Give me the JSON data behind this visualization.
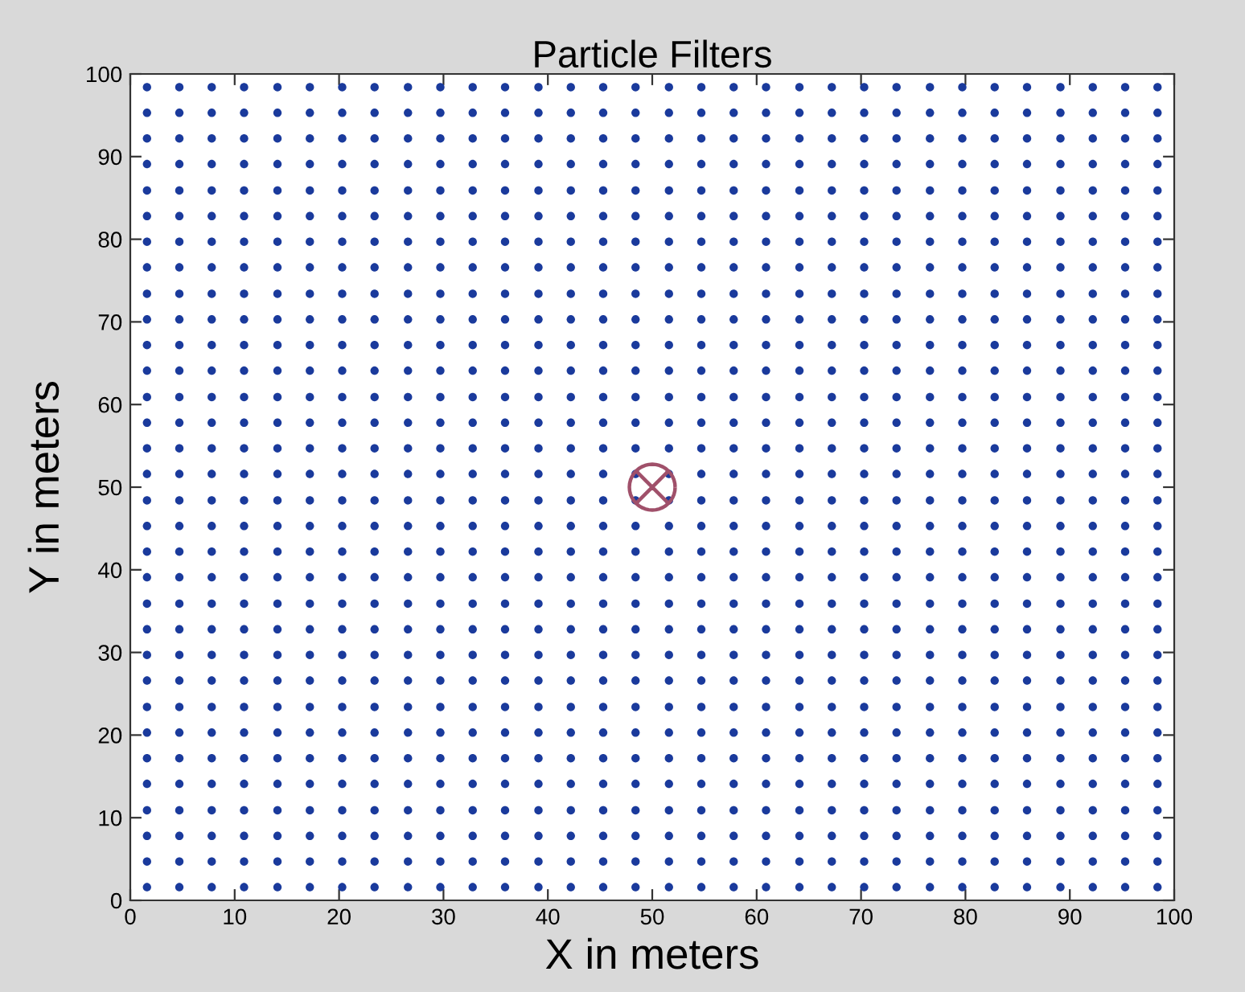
{
  "chart_data": {
    "type": "scatter",
    "title": "Particle Filters",
    "xlabel": "X in meters",
    "ylabel": "Y in meters",
    "xlim": [
      0,
      100
    ],
    "ylim": [
      0,
      100
    ],
    "xticks": [
      0,
      10,
      20,
      30,
      40,
      50,
      60,
      70,
      80,
      90,
      100
    ],
    "yticks": [
      0,
      10,
      20,
      30,
      40,
      50,
      60,
      70,
      80,
      90,
      100
    ],
    "grid": false,
    "series": [
      {
        "color": "#1a3a9c",
        "marker": "circle",
        "x": [
          1.6,
          4.7,
          7.8,
          10.9,
          14.1,
          17.2,
          20.3,
          23.4,
          26.6,
          29.7,
          32.8,
          35.9,
          39.1,
          42.2,
          45.3,
          48.4,
          51.6,
          54.7,
          57.8,
          60.9,
          64.1,
          67.2,
          70.3,
          73.4,
          76.6,
          79.7,
          82.8,
          85.9,
          89.1,
          92.2,
          95.3,
          98.4,
          1.6,
          4.7,
          7.8,
          10.9,
          14.1,
          17.2,
          20.3,
          23.4,
          26.6,
          29.7,
          32.8,
          35.9,
          39.1,
          42.2,
          45.3,
          48.4,
          51.6,
          54.7,
          57.8,
          60.9,
          64.1,
          67.2,
          70.3,
          73.4,
          76.6,
          79.7,
          82.8,
          85.9,
          89.1,
          92.2,
          95.3,
          98.4,
          1.6,
          4.7,
          7.8,
          10.9,
          14.1,
          17.2,
          20.3,
          23.4,
          26.6,
          29.7,
          32.8,
          35.9,
          39.1,
          42.2,
          45.3,
          48.4,
          51.6,
          54.7,
          57.8,
          60.9,
          64.1,
          67.2,
          70.3,
          73.4,
          76.6,
          79.7,
          82.8,
          85.9,
          89.1,
          92.2,
          95.3,
          98.4,
          1.6,
          4.7,
          7.8,
          10.9,
          14.1,
          17.2,
          20.3,
          23.4,
          26.6,
          29.7,
          32.8,
          35.9,
          39.1,
          42.2,
          45.3,
          48.4,
          51.6,
          54.7,
          57.8,
          60.9,
          64.1,
          67.2,
          70.3,
          73.4,
          76.6,
          79.7,
          82.8,
          85.9,
          89.1,
          92.2,
          95.3,
          98.4,
          1.6,
          4.7,
          7.8,
          10.9,
          14.1,
          17.2,
          20.3,
          23.4,
          26.6,
          29.7,
          32.8,
          35.9,
          39.1,
          42.2,
          45.3,
          48.4,
          51.6,
          54.7,
          57.8,
          60.9,
          64.1,
          67.2,
          70.3,
          73.4,
          76.6,
          79.7,
          82.8,
          85.9,
          89.1,
          92.2,
          95.3,
          98.4,
          1.6,
          4.7,
          7.8,
          10.9,
          14.1,
          17.2,
          20.3,
          23.4,
          26.6,
          29.7,
          32.8,
          35.9,
          39.1,
          42.2,
          45.3,
          48.4,
          51.6,
          54.7,
          57.8,
          60.9,
          64.1,
          67.2,
          70.3,
          73.4,
          76.6,
          79.7,
          82.8,
          85.9,
          89.1,
          92.2,
          95.3,
          98.4,
          1.6,
          4.7,
          7.8,
          10.9,
          14.1,
          17.2,
          20.3,
          23.4,
          26.6,
          29.7,
          32.8,
          35.9,
          39.1,
          42.2,
          45.3,
          48.4,
          51.6,
          54.7,
          57.8,
          60.9,
          64.1,
          67.2,
          70.3,
          73.4,
          76.6,
          79.7,
          82.8,
          85.9,
          89.1,
          92.2,
          95.3,
          98.4,
          1.6,
          4.7,
          7.8,
          10.9,
          14.1,
          17.2,
          20.3,
          23.4,
          26.6,
          29.7,
          32.8,
          35.9,
          39.1,
          42.2,
          45.3,
          48.4,
          51.6,
          54.7,
          57.8,
          60.9,
          64.1,
          67.2,
          70.3,
          73.4,
          76.6,
          79.7,
          82.8,
          85.9,
          89.1,
          92.2,
          95.3,
          98.4,
          1.6,
          4.7,
          7.8,
          10.9,
          14.1,
          17.2,
          20.3,
          23.4,
          26.6,
          29.7,
          32.8,
          35.9,
          39.1,
          42.2,
          45.3,
          48.4,
          51.6,
          54.7,
          57.8,
          60.9,
          64.1,
          67.2,
          70.3,
          73.4,
          76.6,
          79.7,
          82.8,
          85.9,
          89.1,
          92.2,
          95.3,
          98.4,
          1.6,
          4.7,
          7.8,
          10.9,
          14.1,
          17.2,
          20.3,
          23.4,
          26.6,
          29.7,
          32.8,
          35.9,
          39.1,
          42.2,
          45.3,
          48.4,
          51.6,
          54.7,
          57.8,
          60.9,
          64.1,
          67.2,
          70.3,
          73.4,
          76.6,
          79.7,
          82.8,
          85.9,
          89.1,
          92.2,
          95.3,
          98.4,
          1.6,
          4.7,
          7.8,
          10.9,
          14.1,
          17.2,
          20.3,
          23.4,
          26.6,
          29.7,
          32.8,
          35.9,
          39.1,
          42.2,
          45.3,
          48.4,
          51.6,
          54.7,
          57.8,
          60.9,
          64.1,
          67.2,
          70.3,
          73.4,
          76.6,
          79.7,
          82.8,
          85.9,
          89.1,
          92.2,
          95.3,
          98.4,
          1.6,
          4.7,
          7.8,
          10.9,
          14.1,
          17.2,
          20.3,
          23.4,
          26.6,
          29.7,
          32.8,
          35.9,
          39.1,
          42.2,
          45.3,
          48.4,
          51.6,
          54.7,
          57.8,
          60.9,
          64.1,
          67.2,
          70.3,
          73.4,
          76.6,
          79.7,
          82.8,
          85.9,
          89.1,
          92.2,
          95.3,
          98.4,
          1.6,
          4.7,
          7.8,
          10.9,
          14.1,
          17.2,
          20.3,
          23.4,
          26.6,
          29.7,
          32.8,
          35.9,
          39.1,
          42.2,
          45.3,
          48.4,
          51.6,
          54.7,
          57.8,
          60.9,
          64.1,
          67.2,
          70.3,
          73.4,
          76.6,
          79.7,
          82.8,
          85.9,
          89.1,
          92.2,
          95.3,
          98.4,
          1.6,
          4.7,
          7.8,
          10.9,
          14.1,
          17.2,
          20.3,
          23.4,
          26.6,
          29.7,
          32.8,
          35.9,
          39.1,
          42.2,
          45.3,
          48.4,
          51.6,
          54.7,
          57.8,
          60.9,
          64.1,
          67.2,
          70.3,
          73.4,
          76.6,
          79.7,
          82.8,
          85.9,
          89.1,
          92.2,
          95.3,
          98.4,
          1.6,
          4.7,
          7.8,
          10.9,
          14.1,
          17.2,
          20.3,
          23.4,
          26.6,
          29.7,
          32.8,
          35.9,
          39.1,
          42.2,
          45.3,
          48.4,
          51.6,
          54.7,
          57.8,
          60.9,
          64.1,
          67.2,
          70.3,
          73.4,
          76.6,
          79.7,
          82.8,
          85.9,
          89.1,
          92.2,
          95.3,
          98.4,
          1.6,
          4.7,
          7.8,
          10.9,
          14.1,
          17.2,
          20.3,
          23.4,
          26.6,
          29.7,
          32.8,
          35.9,
          39.1,
          42.2,
          45.3,
          48.4,
          51.6,
          54.7,
          57.8,
          60.9,
          64.1,
          67.2,
          70.3,
          73.4,
          76.6,
          79.7,
          82.8,
          85.9,
          89.1,
          92.2,
          95.3,
          98.4,
          1.6,
          4.7,
          7.8,
          10.9,
          14.1,
          17.2,
          20.3,
          23.4,
          26.6,
          29.7,
          32.8,
          35.9,
          39.1,
          42.2,
          45.3,
          48.4,
          51.6,
          54.7,
          57.8,
          60.9,
          64.1,
          67.2,
          70.3,
          73.4,
          76.6,
          79.7,
          82.8,
          85.9,
          89.1,
          92.2,
          95.3,
          98.4,
          1.6,
          4.7,
          7.8,
          10.9,
          14.1,
          17.2,
          20.3,
          23.4,
          26.6,
          29.7,
          32.8,
          35.9,
          39.1,
          42.2,
          45.3,
          48.4,
          51.6,
          54.7,
          57.8,
          60.9,
          64.1,
          67.2,
          70.3,
          73.4,
          76.6,
          79.7,
          82.8,
          85.9,
          89.1,
          92.2,
          95.3,
          98.4,
          1.6,
          4.7,
          7.8,
          10.9,
          14.1,
          17.2,
          20.3,
          23.4,
          26.6,
          29.7,
          32.8,
          35.9,
          39.1,
          42.2,
          45.3,
          48.4,
          51.6,
          54.7,
          57.8,
          60.9,
          64.1,
          67.2,
          70.3,
          73.4,
          76.6,
          79.7,
          82.8,
          85.9,
          89.1,
          92.2,
          95.3,
          98.4,
          1.6,
          4.7,
          7.8,
          10.9,
          14.1,
          17.2,
          20.3,
          23.4,
          26.6,
          29.7,
          32.8,
          35.9,
          39.1,
          42.2,
          45.3,
          48.4,
          51.6,
          54.7,
          57.8,
          60.9,
          64.1,
          67.2,
          70.3,
          73.4,
          76.6,
          79.7,
          82.8,
          85.9,
          89.1,
          92.2,
          95.3,
          98.4,
          1.6,
          4.7,
          7.8,
          10.9,
          14.1,
          17.2,
          20.3,
          23.4,
          26.6,
          29.7,
          32.8,
          35.9,
          39.1,
          42.2,
          45.3,
          48.4,
          51.6,
          54.7,
          57.8,
          60.9,
          64.1,
          67.2,
          70.3,
          73.4,
          76.6,
          79.7,
          82.8,
          85.9,
          89.1,
          92.2,
          95.3,
          98.4,
          1.6,
          4.7,
          7.8,
          10.9,
          14.1,
          17.2,
          20.3,
          23.4,
          26.6,
          29.7,
          32.8,
          35.9,
          39.1,
          42.2,
          45.3,
          48.4,
          51.6,
          54.7,
          57.8,
          60.9,
          64.1,
          67.2,
          70.3,
          73.4,
          76.6,
          79.7,
          82.8,
          85.9,
          89.1,
          92.2,
          95.3,
          98.4,
          1.6,
          4.7,
          7.8,
          10.9,
          14.1,
          17.2,
          20.3,
          23.4,
          26.6,
          29.7,
          32.8,
          35.9,
          39.1,
          42.2,
          45.3,
          48.4,
          51.6,
          54.7,
          57.8,
          60.9,
          64.1,
          67.2,
          70.3,
          73.4,
          76.6,
          79.7,
          82.8,
          85.9,
          89.1,
          92.2,
          95.3,
          98.4,
          1.6,
          4.7,
          7.8,
          10.9,
          14.1,
          17.2,
          20.3,
          23.4,
          26.6,
          29.7,
          32.8,
          35.9,
          39.1,
          42.2,
          45.3,
          48.4,
          51.6,
          54.7,
          57.8,
          60.9,
          64.1,
          67.2,
          70.3,
          73.4,
          76.6,
          79.7,
          82.8,
          85.9,
          89.1,
          92.2,
          95.3,
          98.4,
          1.6,
          4.7,
          7.8,
          10.9,
          14.1,
          17.2,
          20.3,
          23.4,
          26.6,
          29.7,
          32.8,
          35.9,
          39.1,
          42.2,
          45.3,
          48.4,
          51.6,
          54.7,
          57.8,
          60.9,
          64.1,
          67.2,
          70.3,
          73.4,
          76.6,
          79.7,
          82.8,
          85.9,
          89.1,
          92.2,
          95.3,
          98.4,
          1.6,
          4.7,
          7.8,
          10.9,
          14.1,
          17.2,
          20.3,
          23.4,
          26.6,
          29.7,
          32.8,
          35.9,
          39.1,
          42.2,
          45.3,
          48.4,
          51.6,
          54.7,
          57.8,
          60.9,
          64.1,
          67.2,
          70.3,
          73.4,
          76.6,
          79.7,
          82.8,
          85.9,
          89.1,
          92.2,
          95.3,
          98.4,
          1.6,
          4.7,
          7.8,
          10.9,
          14.1,
          17.2,
          20.3,
          23.4,
          26.6,
          29.7,
          32.8,
          35.9,
          39.1,
          42.2,
          45.3,
          48.4,
          51.6,
          54.7,
          57.8,
          60.9,
          64.1,
          67.2,
          70.3,
          73.4,
          76.6,
          79.7,
          82.8,
          85.9,
          89.1,
          92.2,
          95.3,
          98.4,
          1.6,
          4.7,
          7.8,
          10.9,
          14.1,
          17.2,
          20.3,
          23.4,
          26.6,
          29.7,
          32.8,
          35.9,
          39.1,
          42.2,
          45.3,
          48.4,
          51.6,
          54.7,
          57.8,
          60.9,
          64.1,
          67.2,
          70.3,
          73.4,
          76.6,
          79.7,
          82.8,
          85.9,
          89.1,
          92.2,
          95.3,
          98.4,
          1.6,
          4.7,
          7.8,
          10.9,
          14.1,
          17.2,
          20.3,
          23.4,
          26.6,
          29.7,
          32.8,
          35.9,
          39.1,
          42.2,
          45.3,
          48.4,
          51.6,
          54.7,
          57.8,
          60.9,
          64.1,
          67.2,
          70.3,
          73.4,
          76.6,
          79.7,
          82.8,
          85.9,
          89.1,
          92.2,
          95.3,
          98.4,
          1.6,
          4.7,
          7.8,
          10.9,
          14.1,
          17.2,
          20.3,
          23.4,
          26.6,
          29.7,
          32.8,
          35.9,
          39.1,
          42.2,
          45.3,
          48.4,
          51.6,
          54.7,
          57.8,
          60.9,
          64.1,
          67.2,
          70.3,
          73.4,
          76.6,
          79.7,
          82.8,
          85.9,
          89.1,
          92.2,
          95.3,
          98.4,
          1.6,
          4.7,
          7.8,
          10.9,
          14.1,
          17.2,
          20.3,
          23.4,
          26.6,
          29.7,
          32.8,
          35.9,
          39.1,
          42.2,
          45.3,
          48.4,
          51.6,
          54.7,
          57.8,
          60.9,
          64.1,
          67.2,
          70.3,
          73.4,
          76.6,
          79.7,
          82.8,
          85.9,
          89.1,
          92.2,
          95.3,
          98.4,
          1.6,
          4.7,
          7.8,
          10.9,
          14.1,
          17.2,
          20.3,
          23.4,
          26.6,
          29.7,
          32.8,
          35.9,
          39.1,
          42.2,
          45.3,
          48.4,
          51.6,
          54.7,
          57.8,
          60.9,
          64.1,
          67.2,
          70.3,
          73.4,
          76.6,
          79.7,
          82.8,
          85.9,
          89.1,
          92.2,
          95.3,
          98.4
        ],
        "values": [
          1.6,
          1.6,
          1.6,
          1.6,
          1.6,
          1.6,
          1.6,
          1.6,
          1.6,
          1.6,
          1.6,
          1.6,
          1.6,
          1.6,
          1.6,
          1.6,
          1.6,
          1.6,
          1.6,
          1.6,
          1.6,
          1.6,
          1.6,
          1.6,
          1.6,
          1.6,
          1.6,
          1.6,
          1.6,
          1.6,
          1.6,
          1.6,
          4.7,
          4.7,
          4.7,
          4.7,
          4.7,
          4.7,
          4.7,
          4.7,
          4.7,
          4.7,
          4.7,
          4.7,
          4.7,
          4.7,
          4.7,
          4.7,
          4.7,
          4.7,
          4.7,
          4.7,
          4.7,
          4.7,
          4.7,
          4.7,
          4.7,
          4.7,
          4.7,
          4.7,
          4.7,
          4.7,
          4.7,
          4.7,
          7.8,
          7.8,
          7.8,
          7.8,
          7.8,
          7.8,
          7.8,
          7.8,
          7.8,
          7.8,
          7.8,
          7.8,
          7.8,
          7.8,
          7.8,
          7.8,
          7.8,
          7.8,
          7.8,
          7.8,
          7.8,
          7.8,
          7.8,
          7.8,
          7.8,
          7.8,
          7.8,
          7.8,
          7.8,
          7.8,
          7.8,
          7.8,
          10.9,
          10.9,
          10.9,
          10.9,
          10.9,
          10.9,
          10.9,
          10.9,
          10.9,
          10.9,
          10.9,
          10.9,
          10.9,
          10.9,
          10.9,
          10.9,
          10.9,
          10.9,
          10.9,
          10.9,
          10.9,
          10.9,
          10.9,
          10.9,
          10.9,
          10.9,
          10.9,
          10.9,
          10.9,
          10.9,
          10.9,
          10.9,
          14.1,
          14.1,
          14.1,
          14.1,
          14.1,
          14.1,
          14.1,
          14.1,
          14.1,
          14.1,
          14.1,
          14.1,
          14.1,
          14.1,
          14.1,
          14.1,
          14.1,
          14.1,
          14.1,
          14.1,
          14.1,
          14.1,
          14.1,
          14.1,
          14.1,
          14.1,
          14.1,
          14.1,
          14.1,
          14.1,
          14.1,
          14.1,
          17.2,
          17.2,
          17.2,
          17.2,
          17.2,
          17.2,
          17.2,
          17.2,
          17.2,
          17.2,
          17.2,
          17.2,
          17.2,
          17.2,
          17.2,
          17.2,
          17.2,
          17.2,
          17.2,
          17.2,
          17.2,
          17.2,
          17.2,
          17.2,
          17.2,
          17.2,
          17.2,
          17.2,
          17.2,
          17.2,
          17.2,
          17.2,
          20.3,
          20.3,
          20.3,
          20.3,
          20.3,
          20.3,
          20.3,
          20.3,
          20.3,
          20.3,
          20.3,
          20.3,
          20.3,
          20.3,
          20.3,
          20.3,
          20.3,
          20.3,
          20.3,
          20.3,
          20.3,
          20.3,
          20.3,
          20.3,
          20.3,
          20.3,
          20.3,
          20.3,
          20.3,
          20.3,
          20.3,
          20.3,
          23.4,
          23.4,
          23.4,
          23.4,
          23.4,
          23.4,
          23.4,
          23.4,
          23.4,
          23.4,
          23.4,
          23.4,
          23.4,
          23.4,
          23.4,
          23.4,
          23.4,
          23.4,
          23.4,
          23.4,
          23.4,
          23.4,
          23.4,
          23.4,
          23.4,
          23.4,
          23.4,
          23.4,
          23.4,
          23.4,
          23.4,
          23.4,
          26.6,
          26.6,
          26.6,
          26.6,
          26.6,
          26.6,
          26.6,
          26.6,
          26.6,
          26.6,
          26.6,
          26.6,
          26.6,
          26.6,
          26.6,
          26.6,
          26.6,
          26.6,
          26.6,
          26.6,
          26.6,
          26.6,
          26.6,
          26.6,
          26.6,
          26.6,
          26.6,
          26.6,
          26.6,
          26.6,
          26.6,
          26.6,
          29.7,
          29.7,
          29.7,
          29.7,
          29.7,
          29.7,
          29.7,
          29.7,
          29.7,
          29.7,
          29.7,
          29.7,
          29.7,
          29.7,
          29.7,
          29.7,
          29.7,
          29.7,
          29.7,
          29.7,
          29.7,
          29.7,
          29.7,
          29.7,
          29.7,
          29.7,
          29.7,
          29.7,
          29.7,
          29.7,
          29.7,
          29.7,
          32.8,
          32.8,
          32.8,
          32.8,
          32.8,
          32.8,
          32.8,
          32.8,
          32.8,
          32.8,
          32.8,
          32.8,
          32.8,
          32.8,
          32.8,
          32.8,
          32.8,
          32.8,
          32.8,
          32.8,
          32.8,
          32.8,
          32.8,
          32.8,
          32.8,
          32.8,
          32.8,
          32.8,
          32.8,
          32.8,
          32.8,
          32.8,
          35.9,
          35.9,
          35.9,
          35.9,
          35.9,
          35.9,
          35.9,
          35.9,
          35.9,
          35.9,
          35.9,
          35.9,
          35.9,
          35.9,
          35.9,
          35.9,
          35.9,
          35.9,
          35.9,
          35.9,
          35.9,
          35.9,
          35.9,
          35.9,
          35.9,
          35.9,
          35.9,
          35.9,
          35.9,
          35.9,
          35.9,
          35.9,
          39.1,
          39.1,
          39.1,
          39.1,
          39.1,
          39.1,
          39.1,
          39.1,
          39.1,
          39.1,
          39.1,
          39.1,
          39.1,
          39.1,
          39.1,
          39.1,
          39.1,
          39.1,
          39.1,
          39.1,
          39.1,
          39.1,
          39.1,
          39.1,
          39.1,
          39.1,
          39.1,
          39.1,
          39.1,
          39.1,
          39.1,
          39.1,
          42.2,
          42.2,
          42.2,
          42.2,
          42.2,
          42.2,
          42.2,
          42.2,
          42.2,
          42.2,
          42.2,
          42.2,
          42.2,
          42.2,
          42.2,
          42.2,
          42.2,
          42.2,
          42.2,
          42.2,
          42.2,
          42.2,
          42.2,
          42.2,
          42.2,
          42.2,
          42.2,
          42.2,
          42.2,
          42.2,
          42.2,
          42.2,
          45.3,
          45.3,
          45.3,
          45.3,
          45.3,
          45.3,
          45.3,
          45.3,
          45.3,
          45.3,
          45.3,
          45.3,
          45.3,
          45.3,
          45.3,
          45.3,
          45.3,
          45.3,
          45.3,
          45.3,
          45.3,
          45.3,
          45.3,
          45.3,
          45.3,
          45.3,
          45.3,
          45.3,
          45.3,
          45.3,
          45.3,
          45.3,
          48.4,
          48.4,
          48.4,
          48.4,
          48.4,
          48.4,
          48.4,
          48.4,
          48.4,
          48.4,
          48.4,
          48.4,
          48.4,
          48.4,
          48.4,
          48.4,
          48.4,
          48.4,
          48.4,
          48.4,
          48.4,
          48.4,
          48.4,
          48.4,
          48.4,
          48.4,
          48.4,
          48.4,
          48.4,
          48.4,
          48.4,
          48.4,
          51.6,
          51.6,
          51.6,
          51.6,
          51.6,
          51.6,
          51.6,
          51.6,
          51.6,
          51.6,
          51.6,
          51.6,
          51.6,
          51.6,
          51.6,
          51.6,
          51.6,
          51.6,
          51.6,
          51.6,
          51.6,
          51.6,
          51.6,
          51.6,
          51.6,
          51.6,
          51.6,
          51.6,
          51.6,
          51.6,
          51.6,
          51.6,
          54.7,
          54.7,
          54.7,
          54.7,
          54.7,
          54.7,
          54.7,
          54.7,
          54.7,
          54.7,
          54.7,
          54.7,
          54.7,
          54.7,
          54.7,
          54.7,
          54.7,
          54.7,
          54.7,
          54.7,
          54.7,
          54.7,
          54.7,
          54.7,
          54.7,
          54.7,
          54.7,
          54.7,
          54.7,
          54.7,
          54.7,
          54.7,
          57.8,
          57.8,
          57.8,
          57.8,
          57.8,
          57.8,
          57.8,
          57.8,
          57.8,
          57.8,
          57.8,
          57.8,
          57.8,
          57.8,
          57.8,
          57.8,
          57.8,
          57.8,
          57.8,
          57.8,
          57.8,
          57.8,
          57.8,
          57.8,
          57.8,
          57.8,
          57.8,
          57.8,
          57.8,
          57.8,
          57.8,
          57.8,
          60.9,
          60.9,
          60.9,
          60.9,
          60.9,
          60.9,
          60.9,
          60.9,
          60.9,
          60.9,
          60.9,
          60.9,
          60.9,
          60.9,
          60.9,
          60.9,
          60.9,
          60.9,
          60.9,
          60.9,
          60.9,
          60.9,
          60.9,
          60.9,
          60.9,
          60.9,
          60.9,
          60.9,
          60.9,
          60.9,
          60.9,
          60.9,
          64.1,
          64.1,
          64.1,
          64.1,
          64.1,
          64.1,
          64.1,
          64.1,
          64.1,
          64.1,
          64.1,
          64.1,
          64.1,
          64.1,
          64.1,
          64.1,
          64.1,
          64.1,
          64.1,
          64.1,
          64.1,
          64.1,
          64.1,
          64.1,
          64.1,
          64.1,
          64.1,
          64.1,
          64.1,
          64.1,
          64.1,
          64.1,
          67.2,
          67.2,
          67.2,
          67.2,
          67.2,
          67.2,
          67.2,
          67.2,
          67.2,
          67.2,
          67.2,
          67.2,
          67.2,
          67.2,
          67.2,
          67.2,
          67.2,
          67.2,
          67.2,
          67.2,
          67.2,
          67.2,
          67.2,
          67.2,
          67.2,
          67.2,
          67.2,
          67.2,
          67.2,
          67.2,
          67.2,
          67.2,
          70.3,
          70.3,
          70.3,
          70.3,
          70.3,
          70.3,
          70.3,
          70.3,
          70.3,
          70.3,
          70.3,
          70.3,
          70.3,
          70.3,
          70.3,
          70.3,
          70.3,
          70.3,
          70.3,
          70.3,
          70.3,
          70.3,
          70.3,
          70.3,
          70.3,
          70.3,
          70.3,
          70.3,
          70.3,
          70.3,
          70.3,
          70.3,
          73.4,
          73.4,
          73.4,
          73.4,
          73.4,
          73.4,
          73.4,
          73.4,
          73.4,
          73.4,
          73.4,
          73.4,
          73.4,
          73.4,
          73.4,
          73.4,
          73.4,
          73.4,
          73.4,
          73.4,
          73.4,
          73.4,
          73.4,
          73.4,
          73.4,
          73.4,
          73.4,
          73.4,
          73.4,
          73.4,
          73.4,
          73.4,
          76.6,
          76.6,
          76.6,
          76.6,
          76.6,
          76.6,
          76.6,
          76.6,
          76.6,
          76.6,
          76.6,
          76.6,
          76.6,
          76.6,
          76.6,
          76.6,
          76.6,
          76.6,
          76.6,
          76.6,
          76.6,
          76.6,
          76.6,
          76.6,
          76.6,
          76.6,
          76.6,
          76.6,
          76.6,
          76.6,
          76.6,
          76.6,
          79.7,
          79.7,
          79.7,
          79.7,
          79.7,
          79.7,
          79.7,
          79.7,
          79.7,
          79.7,
          79.7,
          79.7,
          79.7,
          79.7,
          79.7,
          79.7,
          79.7,
          79.7,
          79.7,
          79.7,
          79.7,
          79.7,
          79.7,
          79.7,
          79.7,
          79.7,
          79.7,
          79.7,
          79.7,
          79.7,
          79.7,
          79.7,
          82.8,
          82.8,
          82.8,
          82.8,
          82.8,
          82.8,
          82.8,
          82.8,
          82.8,
          82.8,
          82.8,
          82.8,
          82.8,
          82.8,
          82.8,
          82.8,
          82.8,
          82.8,
          82.8,
          82.8,
          82.8,
          82.8,
          82.8,
          82.8,
          82.8,
          82.8,
          82.8,
          82.8,
          82.8,
          82.8,
          82.8,
          82.8,
          85.9,
          85.9,
          85.9,
          85.9,
          85.9,
          85.9,
          85.9,
          85.9,
          85.9,
          85.9,
          85.9,
          85.9,
          85.9,
          85.9,
          85.9,
          85.9,
          85.9,
          85.9,
          85.9,
          85.9,
          85.9,
          85.9,
          85.9,
          85.9,
          85.9,
          85.9,
          85.9,
          85.9,
          85.9,
          85.9,
          85.9,
          85.9,
          89.1,
          89.1,
          89.1,
          89.1,
          89.1,
          89.1,
          89.1,
          89.1,
          89.1,
          89.1,
          89.1,
          89.1,
          89.1,
          89.1,
          89.1,
          89.1,
          89.1,
          89.1,
          89.1,
          89.1,
          89.1,
          89.1,
          89.1,
          89.1,
          89.1,
          89.1,
          89.1,
          89.1,
          89.1,
          89.1,
          89.1,
          89.1,
          92.2,
          92.2,
          92.2,
          92.2,
          92.2,
          92.2,
          92.2,
          92.2,
          92.2,
          92.2,
          92.2,
          92.2,
          92.2,
          92.2,
          92.2,
          92.2,
          92.2,
          92.2,
          92.2,
          92.2,
          92.2,
          92.2,
          92.2,
          92.2,
          92.2,
          92.2,
          92.2,
          92.2,
          92.2,
          92.2,
          92.2,
          92.2,
          95.3,
          95.3,
          95.3,
          95.3,
          95.3,
          95.3,
          95.3,
          95.3,
          95.3,
          95.3,
          95.3,
          95.3,
          95.3,
          95.3,
          95.3,
          95.3,
          95.3,
          95.3,
          95.3,
          95.3,
          95.3,
          95.3,
          95.3,
          95.3,
          95.3,
          95.3,
          95.3,
          95.3,
          95.3,
          95.3,
          95.3,
          95.3,
          98.4,
          98.4,
          98.4,
          98.4,
          98.4,
          98.4,
          98.4,
          98.4,
          98.4,
          98.4,
          98.4,
          98.4,
          98.4,
          98.4,
          98.4,
          98.4,
          98.4,
          98.4,
          98.4,
          98.4,
          98.4,
          98.4,
          98.4,
          98.4,
          98.4,
          98.4,
          98.4,
          98.4,
          98.4,
          98.4,
          98.4,
          98.4
        ]
      },
      {
        "color": "#a0506a",
        "marker": "cross",
        "x": [
          50
        ],
        "values": [
          50
        ]
      }
    ]
  }
}
